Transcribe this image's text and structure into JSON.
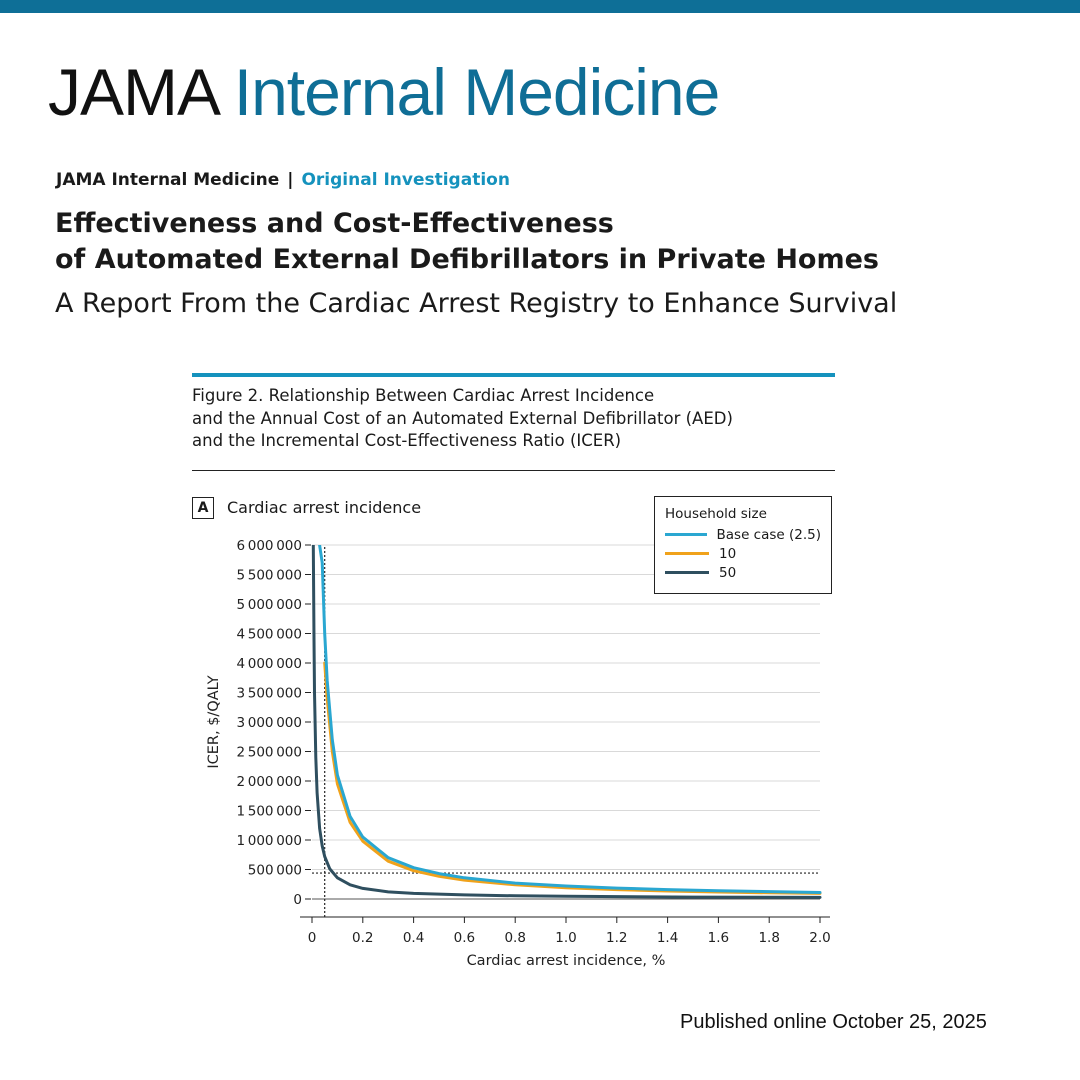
{
  "masthead": {
    "jama": "JAMA",
    "journal": "Internal Medicine"
  },
  "kicker": {
    "journal": "JAMA Internal Medicine",
    "separator": "|",
    "category": "Original Investigation"
  },
  "article": {
    "title_line1": "Effectiveness and Cost-Effectiveness",
    "title_line2": "of Automated External Defibrillators in Private Homes",
    "subtitle": "A Report From the Cardiac Arrest Registry to Enhance Survival"
  },
  "figure": {
    "caption_line1": "Figure 2. Relationship Between Cardiac Arrest Incidence",
    "caption_line2": "and the Annual Cost of an Automated External Defibrillator (AED)",
    "caption_line3": "and the Incremental Cost-Effectiveness Ratio (ICER)",
    "panel_letter": "A",
    "panel_title": "Cardiac arrest incidence"
  },
  "colors": {
    "brand": "#0f6e96",
    "accent": "#1592bd",
    "base_case": "#2aa7d1",
    "size10": "#f0a21b",
    "size50": "#2f4f5f"
  },
  "chart_data": {
    "type": "line",
    "xlabel": "Cardiac arrest incidence, %",
    "ylabel": "ICER, $/QALY",
    "xlim": [
      0,
      2.0
    ],
    "ylim": [
      0,
      6000000
    ],
    "x_ticks": [
      0,
      0.2,
      0.4,
      0.6,
      0.8,
      1.0,
      1.2,
      1.4,
      1.6,
      1.8,
      2.0
    ],
    "x_tick_labels": [
      "0",
      "0.2",
      "0.4",
      "0.6",
      "0.8",
      "1.0",
      "1.2",
      "1.4",
      "1.6",
      "1.8",
      "2.0"
    ],
    "y_ticks": [
      0,
      500000,
      1000000,
      1500000,
      2000000,
      2500000,
      3000000,
      3500000,
      4000000,
      4500000,
      5000000,
      5500000,
      6000000
    ],
    "y_tick_labels": [
      "0",
      "500000",
      "1000000",
      "1500000",
      "2000000",
      "2500000",
      "3000000",
      "3500000",
      "4000000",
      "4500000",
      "5000000",
      "5500000",
      "6000000"
    ],
    "grid": "horizontal",
    "legend": {
      "title": "Household size",
      "placement": "top-right"
    },
    "reference_point": {
      "x": 0.05,
      "y": 440000
    },
    "series": [
      {
        "name": "Base case (2.5)",
        "color": "#2aa7d1",
        "points": [
          [
            0.03,
            6000000
          ],
          [
            0.04,
            5700000
          ],
          [
            0.05,
            4500000
          ],
          [
            0.06,
            3700000
          ],
          [
            0.08,
            2700000
          ],
          [
            0.1,
            2100000
          ],
          [
            0.15,
            1400000
          ],
          [
            0.2,
            1050000
          ],
          [
            0.3,
            700000
          ],
          [
            0.4,
            530000
          ],
          [
            0.5,
            430000
          ],
          [
            0.6,
            360000
          ],
          [
            0.8,
            270000
          ],
          [
            1.0,
            220000
          ],
          [
            1.2,
            185000
          ],
          [
            1.4,
            160000
          ],
          [
            1.6,
            140000
          ],
          [
            1.8,
            125000
          ],
          [
            2.0,
            110000
          ]
        ]
      },
      {
        "name": "10",
        "color": "#f0a21b",
        "points": [
          [
            0.05,
            4000000
          ],
          [
            0.06,
            3400000
          ],
          [
            0.08,
            2500000
          ],
          [
            0.1,
            1950000
          ],
          [
            0.15,
            1300000
          ],
          [
            0.2,
            980000
          ],
          [
            0.3,
            640000
          ],
          [
            0.4,
            480000
          ],
          [
            0.5,
            385000
          ],
          [
            0.6,
            320000
          ],
          [
            0.8,
            240000
          ],
          [
            1.0,
            190000
          ],
          [
            1.2,
            160000
          ],
          [
            1.4,
            135000
          ],
          [
            1.6,
            118000
          ],
          [
            1.8,
            105000
          ],
          [
            2.0,
            95000
          ]
        ]
      },
      {
        "name": "50",
        "color": "#2f4f5f",
        "points": [
          [
            0.005,
            6000000
          ],
          [
            0.008,
            4400000
          ],
          [
            0.01,
            3500000
          ],
          [
            0.015,
            2400000
          ],
          [
            0.02,
            1800000
          ],
          [
            0.03,
            1200000
          ],
          [
            0.04,
            900000
          ],
          [
            0.05,
            720000
          ],
          [
            0.07,
            510000
          ],
          [
            0.1,
            360000
          ],
          [
            0.15,
            240000
          ],
          [
            0.2,
            180000
          ],
          [
            0.3,
            120000
          ],
          [
            0.4,
            95000
          ],
          [
            0.6,
            70000
          ],
          [
            0.8,
            55000
          ],
          [
            1.0,
            45000
          ],
          [
            1.5,
            33000
          ],
          [
            2.0,
            27000
          ]
        ]
      }
    ]
  },
  "footer": {
    "published": "Published online October 25, 2025"
  }
}
